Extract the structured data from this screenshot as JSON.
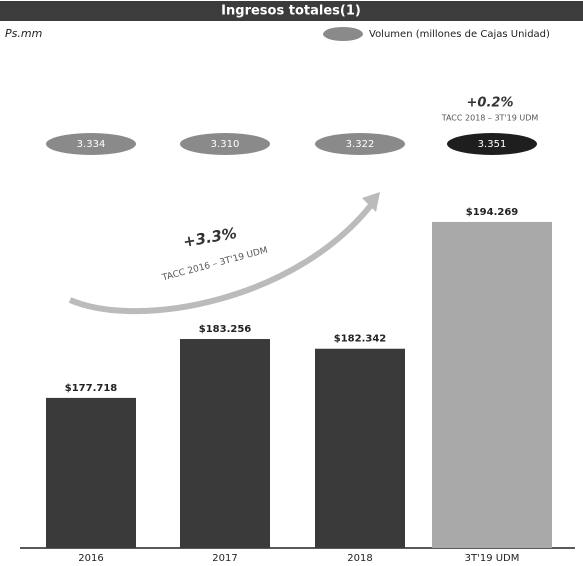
{
  "chart_data": {
    "type": "bar",
    "title": "Ingresos totales(1)",
    "unit_label": "Ps.mm",
    "categories": [
      "2016",
      "2017",
      "2018",
      "3T'19 UDM"
    ],
    "series": [
      {
        "name": "Ingresos totales",
        "colors": [
          "#3a3a3a",
          "#3a3a3a",
          "#3a3a3a",
          "#a9a9a9"
        ],
        "values": [
          177718,
          183256,
          182342,
          194269
        ],
        "value_labels": [
          "$177.718",
          "$183.256",
          "$182.342",
          "$194.269"
        ]
      }
    ],
    "volume": {
      "name": "Volumen (millones de Cajas Unidad)",
      "colors": [
        "#8a8a8a",
        "#8a8a8a",
        "#8a8a8a",
        "#1e1e1e"
      ],
      "values": [
        3334,
        3310,
        3322,
        3351
      ],
      "value_labels": [
        "3.334",
        "3.310",
        "3.322",
        "3.351"
      ]
    },
    "annotations": [
      {
        "text": "+3.3%",
        "subtext": "TACC 2016 – 3T'19 UDM"
      },
      {
        "text": "+0.2%",
        "subtext": "TACC 2018 – 3T'19 UDM"
      }
    ],
    "ylim": [
      163600,
      209500
    ]
  }
}
